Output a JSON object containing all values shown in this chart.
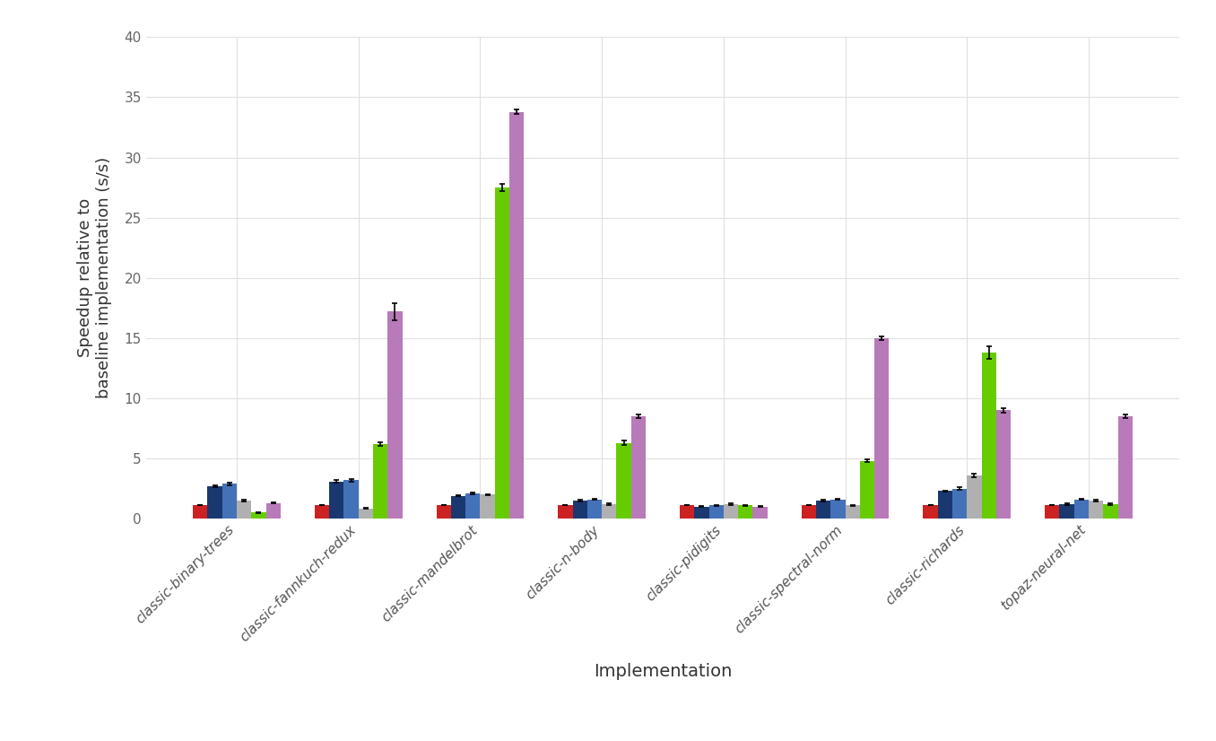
{
  "categories": [
    "classic-binary-trees",
    "classic-fannkuch-redux",
    "classic-mandelbrot",
    "classic-n-body",
    "classic-pidigits",
    "classic-spectral-norm",
    "classic-richards",
    "topaz-neural-net"
  ],
  "series_colors": [
    "#cc2222",
    "#1a3870",
    "#4472b8",
    "#b0b0b0",
    "#66cc00",
    "#b87ab8"
  ],
  "values": [
    [
      1.1,
      2.7,
      2.9,
      1.5,
      0.5,
      1.3
    ],
    [
      1.1,
      3.1,
      3.2,
      0.85,
      6.2,
      17.2
    ],
    [
      1.1,
      1.9,
      2.1,
      2.0,
      27.5,
      33.8
    ],
    [
      1.1,
      1.5,
      1.6,
      1.2,
      6.3,
      8.5
    ],
    [
      1.1,
      1.0,
      1.1,
      1.2,
      1.1,
      1.0
    ],
    [
      1.1,
      1.5,
      1.6,
      1.1,
      4.8,
      15.0
    ],
    [
      1.1,
      2.3,
      2.5,
      3.6,
      13.8,
      9.0
    ],
    [
      1.1,
      1.2,
      1.6,
      1.5,
      1.2,
      8.5
    ]
  ],
  "errors": [
    [
      0.0,
      0.1,
      0.1,
      0.05,
      0.05,
      0.05
    ],
    [
      0.0,
      0.1,
      0.1,
      0.05,
      0.15,
      0.7
    ],
    [
      0.0,
      0.05,
      0.05,
      0.05,
      0.3,
      0.2
    ],
    [
      0.0,
      0.05,
      0.05,
      0.05,
      0.2,
      0.15
    ],
    [
      0.0,
      0.05,
      0.05,
      0.05,
      0.05,
      0.05
    ],
    [
      0.0,
      0.05,
      0.05,
      0.05,
      0.1,
      0.15
    ],
    [
      0.0,
      0.05,
      0.1,
      0.15,
      0.5,
      0.2
    ],
    [
      0.0,
      0.05,
      0.05,
      0.05,
      0.05,
      0.15
    ]
  ],
  "xlabel": "Implementation",
  "ylabel": "Speedup relative to\nbaseline implementation (s/s)",
  "ylim": [
    0,
    40
  ],
  "yticks": [
    0,
    5,
    10,
    15,
    20,
    25,
    30,
    35,
    40
  ],
  "bar_width": 0.12,
  "background_color": "#ffffff",
  "grid_color": "#e0e0e0"
}
